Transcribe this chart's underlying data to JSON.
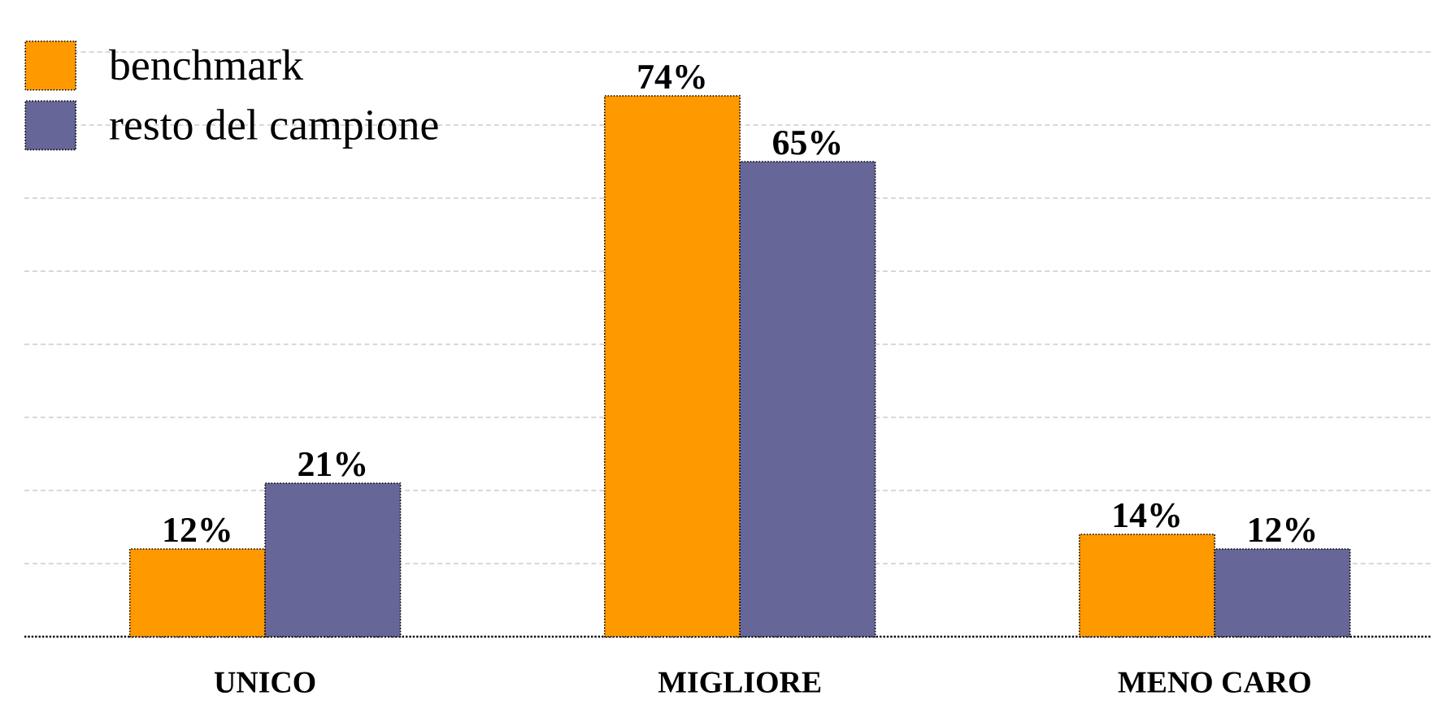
{
  "chart_data": {
    "type": "bar",
    "categories": [
      "UNICO",
      "MIGLIORE",
      "MENO CARO"
    ],
    "series": [
      {
        "name": "benchmark",
        "color": "#ff9900",
        "values": [
          12,
          74,
          14
        ],
        "value_labels": [
          "12%",
          "74%",
          "14%"
        ]
      },
      {
        "name": "resto del campione",
        "color": "#666699",
        "values": [
          21,
          65,
          12
        ],
        "value_labels": [
          "21%",
          "65%",
          "12%"
        ]
      }
    ],
    "ylim": [
      0,
      80
    ],
    "yticks": [
      {
        "value": 10,
        "label": null
      },
      {
        "value": 20,
        "label": null
      },
      {
        "value": 30,
        "label": null
      },
      {
        "value": 40,
        "label": null
      },
      {
        "value": 50,
        "label": null
      },
      {
        "value": 60,
        "label": null
      },
      {
        "value": 70,
        "label": null
      },
      {
        "value": 80,
        "label": null
      }
    ],
    "tick_labels": "x",
    "grid": "y",
    "legend": "top left"
  }
}
